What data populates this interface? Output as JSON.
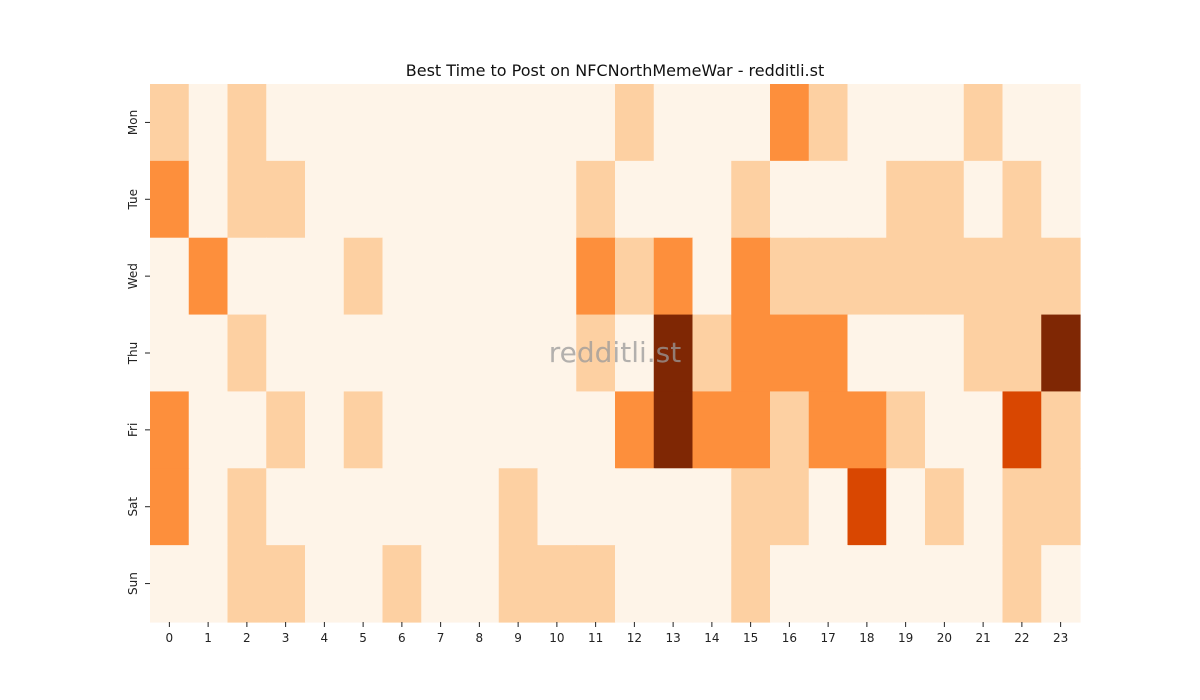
{
  "chart_data": {
    "type": "heatmap",
    "title": "Best Time to Post on NFCNorthMemeWar - redditli.st",
    "watermark": "redditli.st",
    "xlabel": "",
    "ylabel": "",
    "x_categories": [
      "0",
      "1",
      "2",
      "3",
      "4",
      "5",
      "6",
      "7",
      "8",
      "9",
      "10",
      "11",
      "12",
      "13",
      "14",
      "15",
      "16",
      "17",
      "18",
      "19",
      "20",
      "21",
      "22",
      "23"
    ],
    "y_categories": [
      "Mon",
      "Tue",
      "Wed",
      "Thu",
      "Fri",
      "Sat",
      "Sun"
    ],
    "values": [
      [
        1,
        0,
        1,
        0,
        0,
        0,
        0,
        0,
        0,
        0,
        0,
        0,
        1,
        0,
        0,
        0,
        2,
        1,
        0,
        0,
        0,
        1,
        0,
        0
      ],
      [
        2,
        0,
        1,
        1,
        0,
        0,
        0,
        0,
        0,
        0,
        0,
        1,
        0,
        0,
        0,
        1,
        0,
        0,
        0,
        1,
        1,
        0,
        1,
        0
      ],
      [
        0,
        2,
        0,
        0,
        0,
        1,
        0,
        0,
        0,
        0,
        0,
        2,
        1,
        2,
        0,
        2,
        1,
        1,
        1,
        1,
        1,
        1,
        1,
        1
      ],
      [
        0,
        0,
        1,
        0,
        0,
        0,
        0,
        0,
        0,
        0,
        0,
        1,
        0,
        4,
        1,
        2,
        2,
        2,
        0,
        0,
        0,
        1,
        1,
        4
      ],
      [
        2,
        0,
        0,
        1,
        0,
        1,
        0,
        0,
        0,
        0,
        0,
        0,
        2,
        4,
        2,
        2,
        1,
        2,
        2,
        1,
        0,
        0,
        3,
        1
      ],
      [
        2,
        0,
        1,
        0,
        0,
        0,
        0,
        0,
        0,
        1,
        0,
        0,
        0,
        0,
        0,
        1,
        1,
        0,
        3,
        0,
        1,
        0,
        1,
        1
      ],
      [
        0,
        0,
        1,
        1,
        0,
        0,
        1,
        0,
        0,
        1,
        1,
        1,
        0,
        0,
        0,
        1,
        0,
        0,
        0,
        0,
        0,
        0,
        1,
        0
      ]
    ],
    "color_scale": [
      "#fef4e8",
      "#fdd0a2",
      "#fd8f3c",
      "#d94701",
      "#7f2704"
    ],
    "colorbar": false,
    "grid": false
  }
}
